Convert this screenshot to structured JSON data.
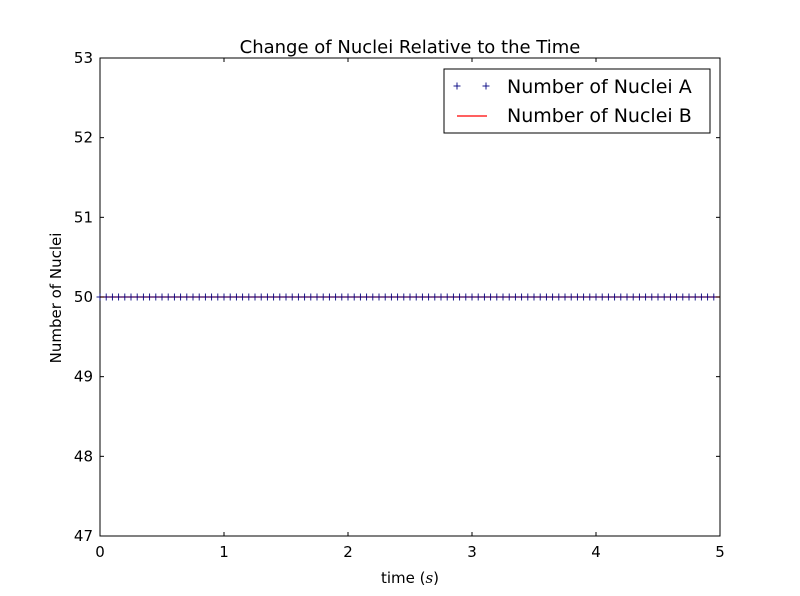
{
  "chart_data": {
    "type": "line",
    "title": "Change of Nuclei Relative to the Time",
    "xlabel_text": "time (",
    "xlabel_var": "s",
    "xlabel_close": ")",
    "ylabel": "Number of Nuclei",
    "xlim": [
      0,
      5
    ],
    "ylim": [
      47,
      53
    ],
    "x_ticks": [
      0,
      1,
      2,
      3,
      4,
      5
    ],
    "x_tick_labels": [
      "0",
      "1",
      "2",
      "3",
      "4",
      "5"
    ],
    "y_ticks": [
      47,
      48,
      49,
      50,
      51,
      52,
      53
    ],
    "y_tick_labels": [
      "47",
      "48",
      "49",
      "50",
      "51",
      "52",
      "53"
    ],
    "grid": false,
    "legend_position": "upper-right",
    "series": [
      {
        "name": "Number of Nuclei A",
        "style": "markers",
        "marker": "+",
        "color": "#00007f",
        "x": [
          0.0,
          0.05,
          0.1,
          0.15,
          0.2,
          0.25,
          0.3,
          0.35,
          0.4,
          0.45,
          0.5,
          0.55,
          0.6,
          0.65,
          0.7,
          0.75,
          0.8,
          0.85,
          0.9,
          0.95,
          1.0,
          1.05,
          1.1,
          1.15,
          1.2,
          1.25,
          1.3,
          1.35,
          1.4,
          1.45,
          1.5,
          1.55,
          1.6,
          1.65,
          1.7,
          1.75,
          1.8,
          1.85,
          1.9,
          1.95,
          2.0,
          2.05,
          2.1,
          2.15,
          2.2,
          2.25,
          2.3,
          2.35,
          2.4,
          2.45,
          2.5,
          2.55,
          2.6,
          2.65,
          2.7,
          2.75,
          2.8,
          2.85,
          2.9,
          2.95,
          3.0,
          3.05,
          3.1,
          3.15,
          3.2,
          3.25,
          3.3,
          3.35,
          3.4,
          3.45,
          3.5,
          3.55,
          3.6,
          3.65,
          3.7,
          3.75,
          3.8,
          3.85,
          3.9,
          3.95,
          4.0,
          4.05,
          4.1,
          4.15,
          4.2,
          4.25,
          4.3,
          4.35,
          4.4,
          4.45,
          4.5,
          4.55,
          4.6,
          4.65,
          4.7,
          4.75,
          4.8,
          4.85,
          4.9,
          4.95
        ],
        "y_constant": 50
      },
      {
        "name": "Number of Nuclei B",
        "style": "line",
        "color": "#ff0000",
        "x": [
          0,
          5
        ],
        "y": [
          50,
          50
        ]
      }
    ]
  }
}
